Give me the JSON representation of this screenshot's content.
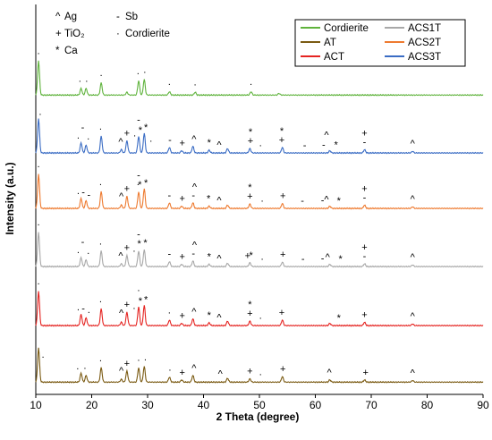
{
  "chart_data": {
    "type": "line",
    "xlabel": "2 Theta (degree)",
    "ylabel": "Intensity (a.u.)",
    "xlim": [
      10,
      90
    ],
    "xticks": [
      10,
      20,
      30,
      40,
      50,
      60,
      70,
      80,
      90
    ],
    "yticks_shown": false,
    "stacked_offsets": true,
    "phase_key": [
      {
        "symbol": "^",
        "label": "Ag"
      },
      {
        "symbol": "+",
        "label": "TiO₂"
      },
      {
        "symbol": "*",
        "label": "Ca"
      },
      {
        "symbol": "-",
        "label": "Sb"
      },
      {
        "symbol": "·",
        "label": "Cordierite"
      }
    ],
    "legend_position": "top-right",
    "legend": [
      "Cordierite",
      "AT",
      "ACT",
      "ACS1T",
      "ACS2T",
      "ACS3T"
    ],
    "series": [
      {
        "name": "Cordierite",
        "color": "#5fb33c",
        "baseline": 0.06,
        "peaks": [
          [
            10.5,
            0.62
          ],
          [
            18.1,
            0.12
          ],
          [
            19.0,
            0.12
          ],
          [
            21.7,
            0.22
          ],
          [
            26.3,
            0.05
          ],
          [
            28.4,
            0.26
          ],
          [
            29.4,
            0.28
          ],
          [
            33.9,
            0.06
          ],
          [
            38.5,
            0.05
          ],
          [
            48.5,
            0.06
          ],
          [
            53.5,
            0.03
          ]
        ]
      },
      {
        "name": "ACS3T",
        "color": "#3a6cc4",
        "baseline": 0.08,
        "peaks": [
          [
            10.5,
            0.62
          ],
          [
            18.1,
            0.18
          ],
          [
            19.0,
            0.14
          ],
          [
            21.7,
            0.3
          ],
          [
            25.3,
            0.06
          ],
          [
            26.3,
            0.22
          ],
          [
            28.4,
            0.3
          ],
          [
            29.4,
            0.35
          ],
          [
            33.9,
            0.1
          ],
          [
            36.1,
            0.04
          ],
          [
            38.1,
            0.12
          ],
          [
            41.0,
            0.05
          ],
          [
            44.3,
            0.08
          ],
          [
            48.3,
            0.08
          ],
          [
            54.1,
            0.1
          ],
          [
            62.6,
            0.04
          ],
          [
            68.8,
            0.06
          ],
          [
            77.4,
            0.03
          ]
        ]
      },
      {
        "name": "ACS2T",
        "color": "#ee7a2f",
        "baseline": 0.08,
        "peaks": [
          [
            10.5,
            0.62
          ],
          [
            18.1,
            0.18
          ],
          [
            19.0,
            0.14
          ],
          [
            21.7,
            0.3
          ],
          [
            25.3,
            0.06
          ],
          [
            26.3,
            0.22
          ],
          [
            28.4,
            0.3
          ],
          [
            29.4,
            0.35
          ],
          [
            33.9,
            0.1
          ],
          [
            36.1,
            0.04
          ],
          [
            38.1,
            0.1
          ],
          [
            41.0,
            0.04
          ],
          [
            44.3,
            0.06
          ],
          [
            48.3,
            0.08
          ],
          [
            54.1,
            0.09
          ],
          [
            62.6,
            0.04
          ],
          [
            68.8,
            0.06
          ],
          [
            77.4,
            0.03
          ]
        ]
      },
      {
        "name": "ACS1T",
        "color": "#a8a8a8",
        "baseline": 0.08,
        "peaks": [
          [
            10.5,
            0.62
          ],
          [
            18.1,
            0.16
          ],
          [
            19.0,
            0.12
          ],
          [
            21.7,
            0.28
          ],
          [
            25.3,
            0.05
          ],
          [
            26.3,
            0.2
          ],
          [
            28.4,
            0.28
          ],
          [
            29.4,
            0.3
          ],
          [
            33.9,
            0.09
          ],
          [
            36.1,
            0.04
          ],
          [
            38.1,
            0.1
          ],
          [
            41.0,
            0.04
          ],
          [
            44.3,
            0.06
          ],
          [
            48.3,
            0.07
          ],
          [
            54.1,
            0.08
          ],
          [
            62.6,
            0.04
          ],
          [
            68.8,
            0.05
          ],
          [
            77.4,
            0.03
          ]
        ]
      },
      {
        "name": "ACT",
        "color": "#e52421",
        "baseline": 0.08,
        "peaks": [
          [
            10.5,
            0.62
          ],
          [
            18.1,
            0.2
          ],
          [
            19.0,
            0.14
          ],
          [
            21.7,
            0.3
          ],
          [
            25.3,
            0.06
          ],
          [
            26.3,
            0.24
          ],
          [
            28.4,
            0.34
          ],
          [
            29.4,
            0.36
          ],
          [
            33.9,
            0.1
          ],
          [
            36.1,
            0.04
          ],
          [
            38.1,
            0.12
          ],
          [
            41.0,
            0.05
          ],
          [
            44.3,
            0.08
          ],
          [
            48.3,
            0.08
          ],
          [
            54.1,
            0.1
          ],
          [
            62.6,
            0.04
          ],
          [
            68.8,
            0.06
          ],
          [
            77.4,
            0.03
          ]
        ]
      },
      {
        "name": "AT",
        "color": "#7a5a12",
        "baseline": 0.06,
        "peaks": [
          [
            10.5,
            0.62
          ],
          [
            18.1,
            0.16
          ],
          [
            19.0,
            0.12
          ],
          [
            21.7,
            0.26
          ],
          [
            25.3,
            0.05
          ],
          [
            26.3,
            0.2
          ],
          [
            28.4,
            0.26
          ],
          [
            29.4,
            0.28
          ],
          [
            33.9,
            0.09
          ],
          [
            36.1,
            0.04
          ],
          [
            38.1,
            0.12
          ],
          [
            44.3,
            0.07
          ],
          [
            48.3,
            0.06
          ],
          [
            54.1,
            0.1
          ],
          [
            62.6,
            0.04
          ],
          [
            68.8,
            0.04
          ],
          [
            77.4,
            0.03
          ]
        ]
      }
    ],
    "annotations": [
      {
        "series": "Cordierite",
        "marks": [
          [
            10.5,
            "·"
          ],
          [
            17.9,
            "·"
          ],
          [
            19.1,
            "·"
          ],
          [
            21.7,
            "·"
          ],
          [
            28.3,
            "·"
          ],
          [
            29.5,
            "·"
          ],
          [
            33.9,
            "·"
          ],
          [
            38.5,
            "·"
          ],
          [
            48.5,
            "·"
          ]
        ]
      },
      {
        "series": "ACS3T",
        "marks": [
          [
            10.8,
            "·"
          ],
          [
            17.6,
            "·"
          ],
          [
            18.4,
            "-"
          ],
          [
            19.4,
            "·"
          ],
          [
            21.6,
            "·"
          ],
          [
            25.2,
            "^"
          ],
          [
            26.3,
            "+"
          ],
          [
            27.7,
            "·"
          ],
          [
            28.4,
            "-"
          ],
          [
            28.7,
            "*"
          ],
          [
            29.7,
            "*"
          ],
          [
            30.6,
            "·"
          ],
          [
            34.0,
            "-"
          ],
          [
            36.2,
            "+"
          ],
          [
            38.3,
            "^"
          ],
          [
            41.0,
            "*"
          ],
          [
            42.8,
            "^"
          ],
          [
            48.4,
            "+"
          ],
          [
            48.4,
            "*"
          ],
          [
            50.2,
            "·"
          ],
          [
            54.0,
            "+"
          ],
          [
            54.0,
            "*"
          ],
          [
            58.1,
            "-"
          ],
          [
            61.5,
            "-"
          ],
          [
            62.0,
            "^"
          ],
          [
            63.7,
            "*"
          ],
          [
            68.8,
            "-"
          ],
          [
            68.8,
            "+"
          ],
          [
            77.4,
            "^"
          ]
        ]
      },
      {
        "series": "ACS2T",
        "marks": [
          [
            10.5,
            "·"
          ],
          [
            17.6,
            "·"
          ],
          [
            18.5,
            "-"
          ],
          [
            19.5,
            "-"
          ],
          [
            21.6,
            "·"
          ],
          [
            25.3,
            "^"
          ],
          [
            26.3,
            "+"
          ],
          [
            28.3,
            "·"
          ],
          [
            28.4,
            "-"
          ],
          [
            28.6,
            "*"
          ],
          [
            29.7,
            "*"
          ],
          [
            33.9,
            "-"
          ],
          [
            36.2,
            "+"
          ],
          [
            38.2,
            "-"
          ],
          [
            38.4,
            "^"
          ],
          [
            40.9,
            "*"
          ],
          [
            42.8,
            "^"
          ],
          [
            48.3,
            "+"
          ],
          [
            48.3,
            "*"
          ],
          [
            50.5,
            "·"
          ],
          [
            54.2,
            "+"
          ],
          [
            57.7,
            "-"
          ],
          [
            61.3,
            "-"
          ],
          [
            62.0,
            "^"
          ],
          [
            64.2,
            "*"
          ],
          [
            68.8,
            "-"
          ],
          [
            68.8,
            "+"
          ],
          [
            77.4,
            "^"
          ]
        ]
      },
      {
        "series": "ACS1T",
        "marks": [
          [
            10.5,
            "·"
          ],
          [
            17.6,
            "·"
          ],
          [
            18.4,
            "-"
          ],
          [
            19.4,
            "·"
          ],
          [
            21.6,
            "·"
          ],
          [
            25.2,
            "^"
          ],
          [
            26.3,
            "+"
          ],
          [
            27.6,
            "·"
          ],
          [
            28.4,
            "-"
          ],
          [
            28.5,
            "*"
          ],
          [
            29.6,
            "*"
          ],
          [
            33.9,
            "-"
          ],
          [
            36.2,
            "+"
          ],
          [
            38.2,
            "-"
          ],
          [
            38.4,
            "^"
          ],
          [
            41.0,
            "*"
          ],
          [
            42.8,
            "^"
          ],
          [
            47.9,
            "+"
          ],
          [
            48.5,
            "*"
          ],
          [
            50.5,
            "·"
          ],
          [
            54.2,
            "+"
          ],
          [
            57.8,
            "-"
          ],
          [
            61.3,
            "-"
          ],
          [
            62.2,
            "^"
          ],
          [
            64.5,
            "*"
          ],
          [
            68.8,
            "-"
          ],
          [
            68.8,
            "+"
          ],
          [
            77.4,
            "^"
          ]
        ]
      },
      {
        "series": "ACT",
        "marks": [
          [
            10.5,
            "·"
          ],
          [
            17.6,
            "·"
          ],
          [
            18.5,
            "-"
          ],
          [
            19.5,
            "·"
          ],
          [
            21.6,
            "·"
          ],
          [
            25.3,
            "^"
          ],
          [
            26.3,
            "+"
          ],
          [
            27.6,
            "·"
          ],
          [
            28.4,
            "·"
          ],
          [
            28.7,
            "*"
          ],
          [
            29.7,
            "*"
          ],
          [
            33.9,
            "·"
          ],
          [
            36.2,
            "+"
          ],
          [
            38.3,
            "^"
          ],
          [
            41.0,
            "*"
          ],
          [
            42.8,
            "^"
          ],
          [
            48.3,
            "+"
          ],
          [
            48.3,
            "*"
          ],
          [
            50.2,
            "·"
          ],
          [
            54.0,
            "+"
          ],
          [
            64.2,
            "*"
          ],
          [
            68.8,
            "+"
          ],
          [
            77.4,
            "^"
          ]
        ]
      },
      {
        "series": "AT",
        "marks": [
          [
            11.3,
            "·"
          ],
          [
            17.5,
            "·"
          ],
          [
            18.8,
            "·"
          ],
          [
            21.6,
            "·"
          ],
          [
            25.3,
            "^"
          ],
          [
            26.3,
            "+"
          ],
          [
            28.4,
            "·"
          ],
          [
            29.6,
            "·"
          ],
          [
            34.0,
            "·"
          ],
          [
            36.2,
            "+"
          ],
          [
            38.3,
            "^"
          ],
          [
            43.0,
            "^"
          ],
          [
            48.3,
            "+"
          ],
          [
            50.2,
            "·"
          ],
          [
            54.2,
            "+"
          ],
          [
            62.5,
            "^"
          ],
          [
            69.0,
            "+"
          ],
          [
            77.4,
            "^"
          ]
        ]
      }
    ]
  }
}
